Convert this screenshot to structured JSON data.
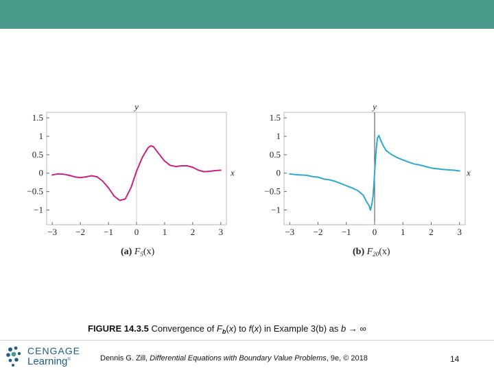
{
  "colors": {
    "topbar": "#4a9b8c",
    "curve_a": "#cc1f84",
    "curve_b": "#2aa9cf",
    "frame": "#b8b8b8",
    "axis": "#555555",
    "logo": "#1f5c87"
  },
  "caption": {
    "figure_num": "FIGURE 14.3.5",
    "text_1": " Convergence of ",
    "f": "F",
    "sub_b": "b",
    "text_2": "(",
    "x1": "x",
    "text_3": ") to ",
    "f2": "f",
    "text_4": "(",
    "x2": "x",
    "text_5": ") in Example 3(b) as ",
    "b": "b",
    "arrow": " → ∞"
  },
  "footer": {
    "logo_word1": "CENGAGE",
    "logo_word2": "Learning",
    "logo_tm": "®",
    "author": "Dennis G. Zill, ",
    "book": "Differential Equations with Boundary Value Problems",
    "edition": ", 9e, © 2018",
    "page": "14"
  },
  "chart_data": [
    {
      "type": "line",
      "panel": "(a)",
      "func": "F",
      "func_sub": "5",
      "func_arg": "(x)",
      "xlabel": "x",
      "ylabel": "y",
      "xlim": [
        -3.2,
        3.2
      ],
      "ylim": [
        -1.4,
        1.65
      ],
      "xticks": [
        "−3",
        "−2",
        "−1",
        "0",
        "1",
        "2",
        "3"
      ],
      "yticks": [
        "−1",
        "−0.5",
        "0",
        "0.5",
        "1",
        "1.5"
      ],
      "grid": false,
      "x": [
        -3.0,
        -2.8,
        -2.6,
        -2.4,
        -2.2,
        -2.0,
        -1.8,
        -1.6,
        -1.4,
        -1.2,
        -1.0,
        -0.8,
        -0.6,
        -0.4,
        -0.2,
        0.0,
        0.2,
        0.4,
        0.5,
        0.6,
        0.8,
        1.0,
        1.2,
        1.4,
        1.6,
        1.8,
        2.0,
        2.2,
        2.4,
        2.6,
        2.8,
        3.0
      ],
      "y": [
        -0.05,
        -0.02,
        -0.03,
        -0.06,
        -0.1,
        -0.12,
        -0.1,
        -0.07,
        -0.1,
        -0.22,
        -0.4,
        -0.62,
        -0.74,
        -0.7,
        -0.4,
        0.05,
        0.42,
        0.68,
        0.74,
        0.72,
        0.52,
        0.33,
        0.21,
        0.18,
        0.2,
        0.2,
        0.16,
        0.08,
        0.04,
        0.05,
        0.07,
        0.08
      ]
    },
    {
      "type": "line",
      "panel": "(b)",
      "func": "F",
      "func_sub": "20",
      "func_arg": "(x)",
      "xlabel": "x",
      "ylabel": "y",
      "xlim": [
        -3.2,
        3.2
      ],
      "ylim": [
        -1.4,
        1.65
      ],
      "xticks": [
        "−3",
        "−2",
        "−1",
        "0",
        "1",
        "2",
        "3"
      ],
      "yticks": [
        "−1",
        "−0.5",
        "0",
        "0.5",
        "1",
        "1.5"
      ],
      "grid": false,
      "x": [
        -3.0,
        -2.8,
        -2.6,
        -2.4,
        -2.2,
        -2.0,
        -1.8,
        -1.6,
        -1.4,
        -1.2,
        -1.0,
        -0.8,
        -0.6,
        -0.4,
        -0.3,
        -0.2,
        -0.15,
        -0.1,
        -0.05,
        0.0,
        0.05,
        0.1,
        0.15,
        0.2,
        0.3,
        0.4,
        0.6,
        0.8,
        1.0,
        1.2,
        1.4,
        1.6,
        1.8,
        2.0,
        2.2,
        2.4,
        2.6,
        2.8,
        3.0
      ],
      "y": [
        -0.02,
        -0.04,
        -0.05,
        -0.06,
        -0.09,
        -0.11,
        -0.16,
        -0.18,
        -0.22,
        -0.28,
        -0.34,
        -0.4,
        -0.47,
        -0.6,
        -0.75,
        -0.88,
        -1.0,
        -0.85,
        -0.6,
        0.0,
        0.6,
        0.95,
        1.02,
        0.92,
        0.75,
        0.62,
        0.5,
        0.42,
        0.36,
        0.3,
        0.25,
        0.22,
        0.18,
        0.14,
        0.12,
        0.1,
        0.09,
        0.08,
        0.06
      ]
    }
  ]
}
